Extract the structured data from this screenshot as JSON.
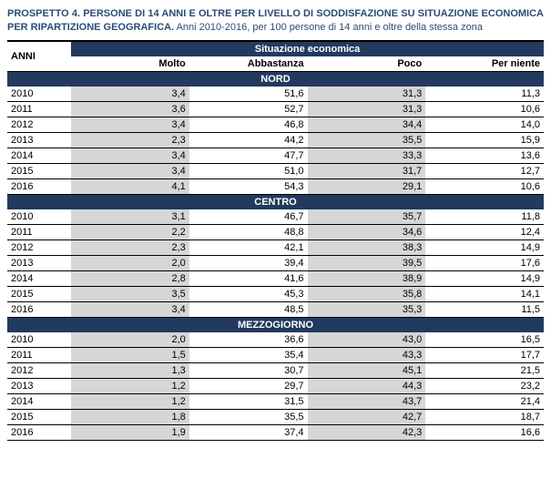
{
  "title_bold": "PROSPETTO 4. PERSONE DI 14 ANNI E OLTRE PER LIVELLO DI SODDISFAZIONE SU SITUAZIONE ECONOMICA PER RIPARTIZIONE GEOGRAFICA.",
  "title_rest": " Anni 2010-2016, per 100 persone di 14 anni e oltre della stessa zona",
  "row_header": "ANNI",
  "group_header": "Situazione economica",
  "columns": [
    "Molto",
    "Abbastanza",
    "Poco",
    "Per niente"
  ],
  "colors": {
    "header_bg": "#223a5e",
    "header_fg": "#ffffff",
    "shaded_bg": "#d6d6d6",
    "title_color": "#2a4d78",
    "border": "#000000"
  },
  "regions": [
    {
      "name": "NORD",
      "rows": [
        {
          "year": "2010",
          "vals": [
            "3,4",
            "51,6",
            "31,3",
            "11,3"
          ]
        },
        {
          "year": "2011",
          "vals": [
            "3,6",
            "52,7",
            "31,3",
            "10,6"
          ]
        },
        {
          "year": "2012",
          "vals": [
            "3,4",
            "46,8",
            "34,4",
            "14,0"
          ]
        },
        {
          "year": "2013",
          "vals": [
            "2,3",
            "44,2",
            "35,5",
            "15,9"
          ]
        },
        {
          "year": "2014",
          "vals": [
            "3,4",
            "47,7",
            "33,3",
            "13,6"
          ]
        },
        {
          "year": "2015",
          "vals": [
            "3,4",
            "51,0",
            "31,7",
            "12,7"
          ]
        },
        {
          "year": "2016",
          "vals": [
            "4,1",
            "54,3",
            "29,1",
            "10,6"
          ]
        }
      ]
    },
    {
      "name": "CENTRO",
      "rows": [
        {
          "year": "2010",
          "vals": [
            "3,1",
            "46,7",
            "35,7",
            "11,8"
          ]
        },
        {
          "year": "2011",
          "vals": [
            "2,2",
            "48,8",
            "34,6",
            "12,4"
          ]
        },
        {
          "year": "2012",
          "vals": [
            "2,3",
            "42,1",
            "38,3",
            "14,9"
          ]
        },
        {
          "year": "2013",
          "vals": [
            "2,0",
            "39,4",
            "39,5",
            "17,6"
          ]
        },
        {
          "year": "2014",
          "vals": [
            "2,8",
            "41,6",
            "38,9",
            "14,9"
          ]
        },
        {
          "year": "2015",
          "vals": [
            "3,5",
            "45,3",
            "35,8",
            "14,1"
          ]
        },
        {
          "year": "2016",
          "vals": [
            "3,4",
            "48,5",
            "35,3",
            "11,5"
          ]
        }
      ]
    },
    {
      "name": "MEZZOGIORNO",
      "rows": [
        {
          "year": "2010",
          "vals": [
            "2,0",
            "36,6",
            "43,0",
            "16,5"
          ]
        },
        {
          "year": "2011",
          "vals": [
            "1,5",
            "35,4",
            "43,3",
            "17,7"
          ]
        },
        {
          "year": "2012",
          "vals": [
            "1,3",
            "30,7",
            "45,1",
            "21,5"
          ]
        },
        {
          "year": "2013",
          "vals": [
            "1,2",
            "29,7",
            "44,3",
            "23,2"
          ]
        },
        {
          "year": "2014",
          "vals": [
            "1,2",
            "31,5",
            "43,7",
            "21,4"
          ]
        },
        {
          "year": "2015",
          "vals": [
            "1,8",
            "35,5",
            "42,7",
            "18,7"
          ]
        },
        {
          "year": "2016",
          "vals": [
            "1,9",
            "37,4",
            "42,3",
            "16,6"
          ]
        }
      ]
    }
  ],
  "shaded_value_cols": [
    0,
    2
  ]
}
